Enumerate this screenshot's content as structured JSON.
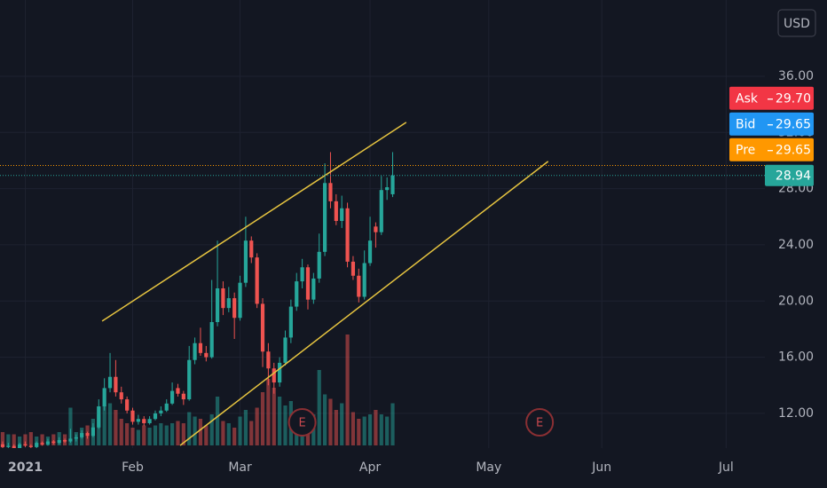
{
  "chart_data": {
    "type": "candlestick",
    "currency": "USD",
    "xlim": [
      -0.47,
      134.85
    ],
    "ylim": [
      9.53,
      41.43
    ],
    "yticks": [
      {
        "value": 12,
        "label": "12.00"
      },
      {
        "value": 16,
        "label": "16.00"
      },
      {
        "value": 20,
        "label": "20.00"
      },
      {
        "value": 24,
        "label": "24.00"
      },
      {
        "value": 28,
        "label": "28.00"
      },
      {
        "value": 32,
        "label": "32.00"
      },
      {
        "value": 36,
        "label": "36.00"
      }
    ],
    "xticks": [
      {
        "value": 4,
        "label": "2021"
      },
      {
        "value": 23,
        "label": "Feb"
      },
      {
        "value": 42,
        "label": "Mar"
      },
      {
        "value": 65,
        "label": "Apr"
      },
      {
        "value": 86,
        "label": "May"
      },
      {
        "value": 106,
        "label": "Jun"
      },
      {
        "value": 128,
        "label": "Jul"
      }
    ],
    "grid": true,
    "up_color": "#26a69a",
    "down_color": "#ef5350",
    "open": [
      9.8,
      9.6,
      9.7,
      9.5,
      9.8,
      9.7,
      9.6,
      9.9,
      9.8,
      10.0,
      9.9,
      10.1,
      10.0,
      10.2,
      10.3,
      10.6,
      10.4,
      11.0,
      12.5,
      13.8,
      14.6,
      13.5,
      13.0,
      12.2,
      11.4,
      11.6,
      11.3,
      11.6,
      12.0,
      12.2,
      12.7,
      13.8,
      13.4,
      13.0,
      15.8,
      17.0,
      16.3,
      16.0,
      18.5,
      20.9,
      19.5,
      20.2,
      18.8,
      21.3,
      24.3,
      23.1,
      19.8,
      16.4,
      15.2,
      14.2,
      15.6,
      17.4,
      19.6,
      21.4,
      22.4,
      20.1,
      21.6,
      23.5,
      28.4,
      27.1,
      25.7,
      26.6,
      22.8,
      21.8,
      20.3,
      22.7,
      25.3,
      24.9,
      27.9,
      27.6
    ],
    "high": [
      10.0,
      9.9,
      9.8,
      9.9,
      10.0,
      9.8,
      10.0,
      10.0,
      10.2,
      10.1,
      10.3,
      10.2,
      10.9,
      10.5,
      10.8,
      10.7,
      11.3,
      13.0,
      14.5,
      16.3,
      15.8,
      13.9,
      13.2,
      12.4,
      11.9,
      11.8,
      11.8,
      12.2,
      12.5,
      13.0,
      14.2,
      14.1,
      13.6,
      16.8,
      17.4,
      18.1,
      16.8,
      21.5,
      24.3,
      21.4,
      21.0,
      20.6,
      21.8,
      26.0,
      24.6,
      23.4,
      20.2,
      17.0,
      15.6,
      16.0,
      17.9,
      20.1,
      22.0,
      23.0,
      22.6,
      22.0,
      24.8,
      29.8,
      30.6,
      27.6,
      27.5,
      27.0,
      23.2,
      22.3,
      23.6,
      26.0,
      25.6,
      28.9,
      28.8,
      30.6
    ],
    "low": [
      9.5,
      9.5,
      9.4,
      9.4,
      9.6,
      9.5,
      9.5,
      9.7,
      9.7,
      9.8,
      9.8,
      9.9,
      9.9,
      10.0,
      10.2,
      10.2,
      10.3,
      10.9,
      12.2,
      13.5,
      13.2,
      12.7,
      12.0,
      11.2,
      11.2,
      11.1,
      11.2,
      11.5,
      11.8,
      12.1,
      12.6,
      13.2,
      12.6,
      12.9,
      15.5,
      16.1,
      15.7,
      15.9,
      18.2,
      19.0,
      19.2,
      17.3,
      18.6,
      21.0,
      22.7,
      19.5,
      15.3,
      14.0,
      13.4,
      13.9,
      15.4,
      17.0,
      19.3,
      20.9,
      19.4,
      19.8,
      21.3,
      23.2,
      26.6,
      25.4,
      25.2,
      22.4,
      21.5,
      19.9,
      20.1,
      22.5,
      23.8,
      24.7,
      27.2,
      27.4
    ],
    "close": [
      9.6,
      9.7,
      9.5,
      9.8,
      9.7,
      9.6,
      9.9,
      9.8,
      10.0,
      9.9,
      10.1,
      10.0,
      10.2,
      10.3,
      10.6,
      10.4,
      11.0,
      12.5,
      13.8,
      14.6,
      13.5,
      13.0,
      12.2,
      11.4,
      11.6,
      11.3,
      11.6,
      12.0,
      12.2,
      12.7,
      13.6,
      13.4,
      13.0,
      15.8,
      17.0,
      16.3,
      16.0,
      18.5,
      20.9,
      19.5,
      20.2,
      18.8,
      21.3,
      24.3,
      23.1,
      19.8,
      16.4,
      15.2,
      14.2,
      15.6,
      17.4,
      19.6,
      21.4,
      22.4,
      20.1,
      21.6,
      23.5,
      28.4,
      27.1,
      25.7,
      26.6,
      22.8,
      21.8,
      20.3,
      22.7,
      24.3,
      24.9,
      27.9,
      28.1,
      28.94
    ],
    "volume": [
      6,
      5,
      5,
      4,
      5,
      6,
      4,
      5,
      4,
      5,
      6,
      5,
      17,
      6,
      8,
      9,
      12,
      14,
      18,
      19,
      16,
      12,
      10,
      8,
      7,
      9,
      8,
      9,
      10,
      9,
      10,
      11,
      10,
      15,
      13,
      12,
      9,
      14,
      22,
      11,
      10,
      8,
      13,
      16,
      11,
      17,
      24,
      30,
      26,
      22,
      18,
      20,
      16,
      13,
      10,
      14,
      34,
      23,
      21,
      16,
      19,
      50,
      15,
      12,
      13,
      14,
      16,
      14,
      13,
      19
    ],
    "trend_lines": [
      {
        "color": "#e6c440",
        "x": [
          17.6,
          71.4
        ],
        "y": [
          18.57,
          32.72
        ]
      },
      {
        "color": "#e6c440",
        "x": [
          31.4,
          96.5
        ],
        "y": [
          9.72,
          29.94
        ]
      }
    ],
    "price_labels": [
      {
        "name": "Ask",
        "value": 29.7,
        "label": "29.70",
        "color": "#f23645",
        "line": false
      },
      {
        "name": "Bid",
        "value": 29.65,
        "label": "29.65",
        "color": "#2196f3",
        "line": false
      },
      {
        "name": "Pre",
        "value": 29.65,
        "label": "29.65",
        "color": "#ff9800",
        "line": true
      }
    ],
    "events": [
      {
        "x": 53,
        "label": "E"
      },
      {
        "x": 95,
        "label": "E"
      }
    ]
  }
}
